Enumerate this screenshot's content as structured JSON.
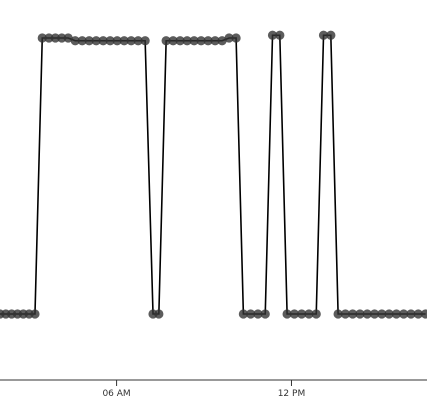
{
  "chart_data": {
    "type": "line",
    "title": "",
    "xlabel": "",
    "ylabel": "",
    "x_range_hours": [
      2.0,
      16.65
    ],
    "y_range": [
      -0.12,
      1.0
    ],
    "x_ticks": [
      {
        "value": 6,
        "label": "06 AM"
      },
      {
        "value": 12,
        "label": "12 PM"
      }
    ],
    "series": [
      {
        "points": [
          [
            2.0,
            0
          ],
          [
            2.2,
            0
          ],
          [
            2.4,
            0
          ],
          [
            2.6,
            0
          ],
          [
            2.8,
            0
          ],
          [
            3.0,
            0
          ],
          [
            3.2,
            0
          ],
          [
            3.45,
            1.0
          ],
          [
            3.68,
            1.0
          ],
          [
            3.9,
            1.0
          ],
          [
            4.12,
            1.0
          ],
          [
            4.34,
            1.0
          ],
          [
            4.58,
            0.99
          ],
          [
            4.82,
            0.99
          ],
          [
            5.06,
            0.99
          ],
          [
            5.3,
            0.99
          ],
          [
            5.54,
            0.99
          ],
          [
            5.78,
            0.99
          ],
          [
            6.02,
            0.99
          ],
          [
            6.26,
            0.99
          ],
          [
            6.5,
            0.99
          ],
          [
            6.74,
            0.99
          ],
          [
            6.98,
            0.99
          ],
          [
            7.25,
            0
          ],
          [
            7.45,
            0
          ],
          [
            7.7,
            0.99
          ],
          [
            7.94,
            0.99
          ],
          [
            8.18,
            0.99
          ],
          [
            8.42,
            0.99
          ],
          [
            8.66,
            0.99
          ],
          [
            8.9,
            0.99
          ],
          [
            9.14,
            0.99
          ],
          [
            9.38,
            0.99
          ],
          [
            9.62,
            0.99
          ],
          [
            9.86,
            1.0
          ],
          [
            10.1,
            1.0
          ],
          [
            10.35,
            0
          ],
          [
            10.6,
            0
          ],
          [
            10.85,
            0
          ],
          [
            11.1,
            0
          ],
          [
            11.35,
            1.01
          ],
          [
            11.6,
            1.01
          ],
          [
            11.85,
            0
          ],
          [
            12.1,
            0
          ],
          [
            12.35,
            0
          ],
          [
            12.6,
            0
          ],
          [
            12.85,
            0
          ],
          [
            13.1,
            1.01
          ],
          [
            13.35,
            1.01
          ],
          [
            13.6,
            0
          ],
          [
            13.85,
            0
          ],
          [
            14.1,
            0
          ],
          [
            14.35,
            0
          ],
          [
            14.6,
            0
          ],
          [
            14.85,
            0
          ],
          [
            15.1,
            0
          ],
          [
            15.35,
            0
          ],
          [
            15.6,
            0
          ],
          [
            15.85,
            0
          ],
          [
            16.1,
            0
          ],
          [
            16.35,
            0
          ],
          [
            16.6,
            0
          ]
        ]
      }
    ],
    "grid": false,
    "legend": "none"
  },
  "style": {
    "line_color": "#000000",
    "point_color": "#333333",
    "axis_color": "#333333"
  }
}
